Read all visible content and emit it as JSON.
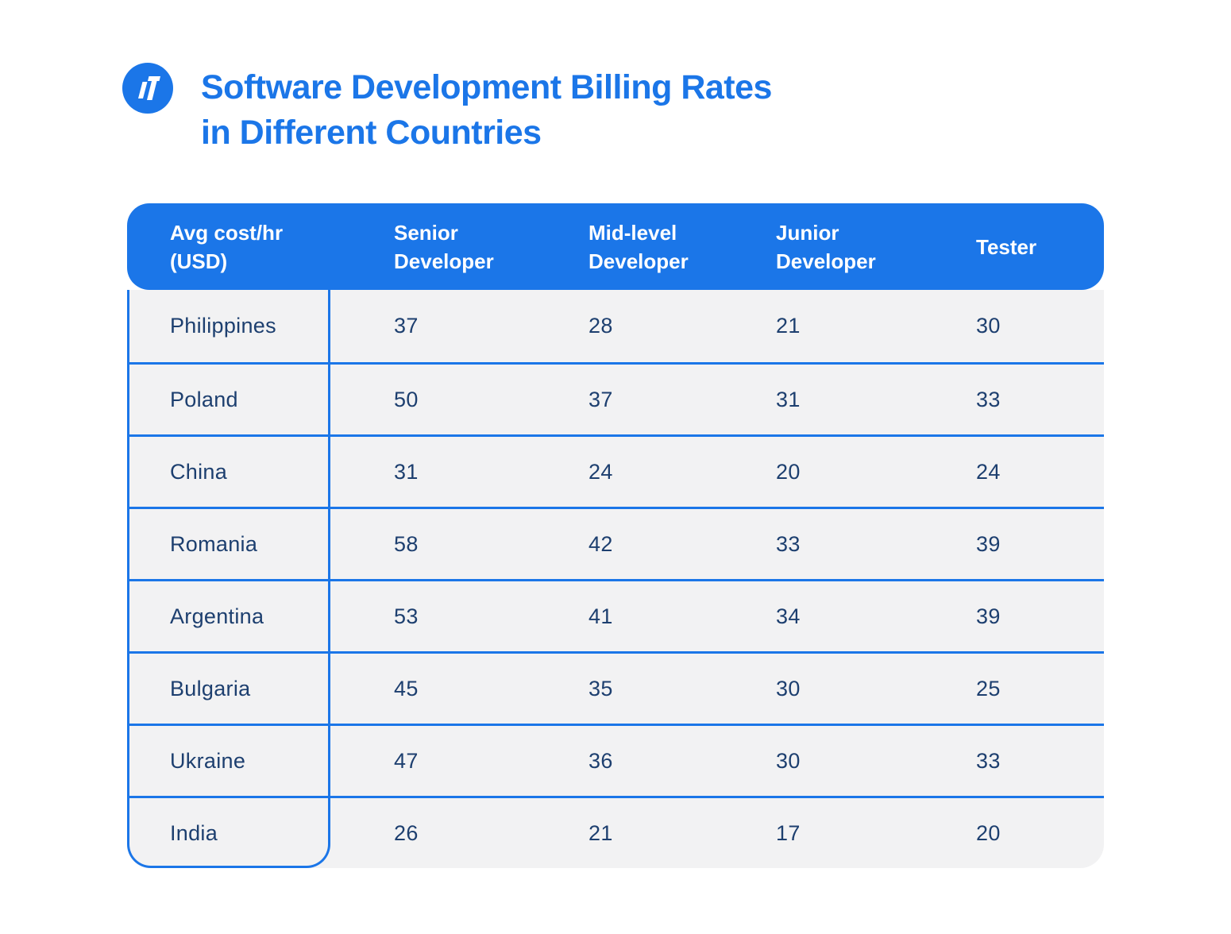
{
  "colors": {
    "accent": "#1b76e8",
    "navy": "#1d3f6f",
    "row_background": "#f2f2f3",
    "header_text": "#ffffff",
    "page_background": "#ffffff"
  },
  "logo": {
    "name": "brand-logo",
    "shape": "blue-circle-with-white-italic-glyph"
  },
  "title": {
    "line1": "Software Development Billing Rates",
    "line2": "in Different Countries"
  },
  "table": {
    "columns": [
      "Avg cost/hr (USD)",
      "Senior Developer",
      "Mid-level Developer",
      "Junior Developer",
      "Tester"
    ],
    "rows": [
      {
        "country": "Philippines",
        "values": [
          37,
          28,
          21,
          30
        ]
      },
      {
        "country": "Poland",
        "values": [
          50,
          37,
          31,
          33
        ]
      },
      {
        "country": "China",
        "values": [
          31,
          24,
          20,
          24
        ]
      },
      {
        "country": "Romania",
        "values": [
          58,
          42,
          33,
          39
        ]
      },
      {
        "country": "Argentina",
        "values": [
          53,
          41,
          34,
          39
        ]
      },
      {
        "country": "Bulgaria",
        "values": [
          45,
          35,
          30,
          25
        ]
      },
      {
        "country": "Ukraine",
        "values": [
          47,
          36,
          30,
          33
        ]
      },
      {
        "country": "India",
        "values": [
          26,
          21,
          17,
          20
        ]
      }
    ]
  },
  "chart_data": {
    "type": "table",
    "title": "Software Development Billing Rates in Different Countries",
    "unit": "USD per hour",
    "columns": [
      "Avg cost/hr (USD)",
      "Senior Developer",
      "Mid-level Developer",
      "Junior Developer",
      "Tester"
    ],
    "rows": [
      [
        "Philippines",
        37,
        28,
        21,
        30
      ],
      [
        "Poland",
        50,
        37,
        31,
        33
      ],
      [
        "China",
        31,
        24,
        20,
        24
      ],
      [
        "Romania",
        58,
        42,
        33,
        39
      ],
      [
        "Argentina",
        53,
        41,
        34,
        39
      ],
      [
        "Bulgaria",
        45,
        35,
        30,
        25
      ],
      [
        "Ukraine",
        47,
        36,
        30,
        33
      ],
      [
        "India",
        26,
        21,
        17,
        20
      ]
    ]
  }
}
